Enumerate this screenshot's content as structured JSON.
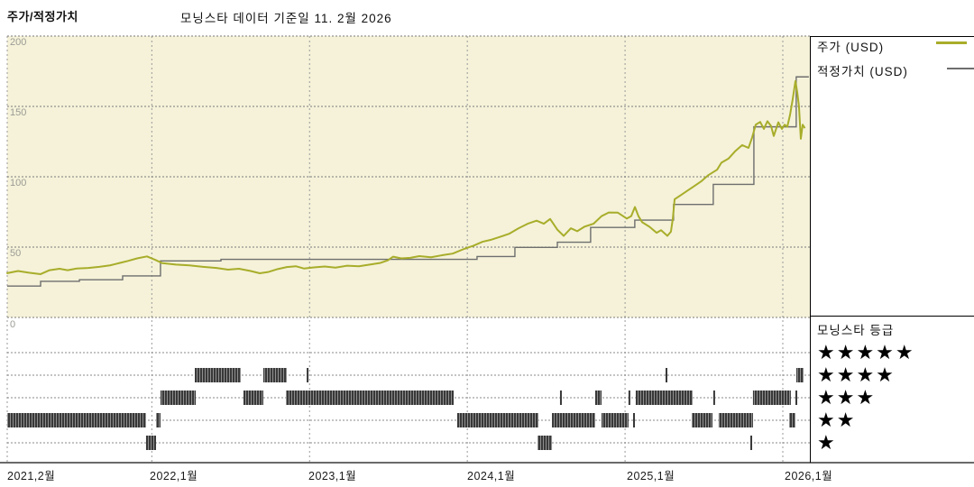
{
  "title": "주가/적정가치",
  "subtitle": "모닝스타 데이터 기준일 11. 2월 2026",
  "legend": {
    "price_label": "주가 (USD)",
    "fair_value_label": "적정가치 (USD)",
    "rating_title": "모닝스타 등급",
    "rating_rows": [
      {
        "stars": "★★★★★",
        "value": 5
      },
      {
        "stars": "★★★★",
        "value": 4
      },
      {
        "stars": "★★★",
        "value": 3
      },
      {
        "stars": "★★",
        "value": 2
      },
      {
        "stars": "★",
        "value": 1
      }
    ]
  },
  "colors": {
    "price": "#a8ad2a",
    "fair_value": "#6e6e6e",
    "plot_bg": "#f5f2d9",
    "grid": "#8a8a8a",
    "barcode_dark": "#383838",
    "barcode_light": "#8f8f8f",
    "axis_label": "#9b9b94"
  },
  "y_axis": {
    "ticks": [
      "200",
      "150",
      "100",
      "50",
      "0"
    ]
  },
  "x_axis": {
    "labels": [
      {
        "text": "2021,2월",
        "month": 0
      },
      {
        "text": "2022,1월",
        "month": 11
      },
      {
        "text": "2023,1월",
        "month": 23
      },
      {
        "text": "2024,1월",
        "month": 35
      },
      {
        "text": "2025,1월",
        "month": 47
      },
      {
        "text": "2026,1월",
        "month": 59
      }
    ]
  },
  "chart_data": {
    "type": "line",
    "title": "주가/적정가치",
    "as_of": "11. 2월 2026",
    "x_unit": "months since 2021-02",
    "xlim": [
      0,
      61.2
    ],
    "ylim": [
      0,
      200
    ],
    "grid": true,
    "legend_position": "right",
    "series": [
      {
        "name": "주가 (USD)",
        "color": "#a8ad2a",
        "step": false,
        "points": [
          [
            0,
            31.5
          ],
          [
            0.82,
            33
          ],
          [
            1.65,
            31.8
          ],
          [
            2.54,
            30.8
          ],
          [
            3.22,
            33.6
          ],
          [
            3.98,
            34.6
          ],
          [
            4.6,
            33.6
          ],
          [
            5.28,
            34.8
          ],
          [
            6.17,
            35.2
          ],
          [
            7,
            36
          ],
          [
            7.82,
            37
          ],
          [
            8.58,
            38.8
          ],
          [
            9.19,
            40.2
          ],
          [
            9.88,
            42
          ],
          [
            10.63,
            43.4
          ],
          [
            11.25,
            41
          ],
          [
            11.8,
            38.6
          ],
          [
            12.83,
            37.6
          ],
          [
            13.86,
            37
          ],
          [
            14.89,
            36
          ],
          [
            15.92,
            35.2
          ],
          [
            16.81,
            34
          ],
          [
            17.63,
            34.6
          ],
          [
            18.52,
            33
          ],
          [
            19.21,
            31.4
          ],
          [
            19.89,
            32.4
          ],
          [
            20.58,
            34.4
          ],
          [
            21.27,
            35.8
          ],
          [
            21.95,
            36.4
          ],
          [
            22.57,
            34.8
          ],
          [
            23.32,
            35.6
          ],
          [
            24.15,
            36.2
          ],
          [
            24.97,
            35.4
          ],
          [
            25.86,
            36.8
          ],
          [
            26.75,
            36.4
          ],
          [
            27.58,
            37.6
          ],
          [
            28.4,
            38.8
          ],
          [
            28.95,
            40.6
          ],
          [
            29.36,
            43.2
          ],
          [
            29.98,
            42
          ],
          [
            30.66,
            42.4
          ],
          [
            31.35,
            43.6
          ],
          [
            32.24,
            42.8
          ],
          [
            33.07,
            44.2
          ],
          [
            33.89,
            45.4
          ],
          [
            34.78,
            48.8
          ],
          [
            35.47,
            51
          ],
          [
            36.16,
            53.8
          ],
          [
            36.84,
            55.3
          ],
          [
            37.53,
            57.4
          ],
          [
            38.21,
            59.6
          ],
          [
            38.9,
            63.4
          ],
          [
            39.59,
            66.6
          ],
          [
            40.27,
            68.8
          ],
          [
            40.82,
            66.6
          ],
          [
            41.3,
            70
          ],
          [
            41.85,
            62.4
          ],
          [
            42.33,
            58
          ],
          [
            42.88,
            63.4
          ],
          [
            43.36,
            61.3
          ],
          [
            43.91,
            64.5
          ],
          [
            44.6,
            66.6
          ],
          [
            45.21,
            72
          ],
          [
            45.76,
            74.6
          ],
          [
            46.45,
            74.5
          ],
          [
            47.13,
            70.3
          ],
          [
            47.47,
            72
          ],
          [
            47.75,
            78.5
          ],
          [
            48.02,
            72
          ],
          [
            48.3,
            67.7
          ],
          [
            48.85,
            64.5
          ],
          [
            49.4,
            60.2
          ],
          [
            49.74,
            62
          ],
          [
            50.22,
            58
          ],
          [
            50.49,
            61
          ],
          [
            50.63,
            70
          ],
          [
            50.77,
            84
          ],
          [
            51.25,
            87
          ],
          [
            51.73,
            90
          ],
          [
            52.28,
            93.5
          ],
          [
            52.83,
            97
          ],
          [
            53.31,
            101
          ],
          [
            54,
            105
          ],
          [
            54.33,
            110
          ],
          [
            54.88,
            113
          ],
          [
            55.36,
            118
          ],
          [
            55.91,
            122.5
          ],
          [
            56.39,
            120.5
          ],
          [
            56.67,
            128
          ],
          [
            56.94,
            137
          ],
          [
            57.28,
            139
          ],
          [
            57.56,
            134
          ],
          [
            57.83,
            139.5
          ],
          [
            58.11,
            136
          ],
          [
            58.31,
            129
          ],
          [
            58.66,
            138.7
          ],
          [
            58.93,
            134
          ],
          [
            59.14,
            137
          ],
          [
            59.34,
            135.5
          ],
          [
            59.55,
            144
          ],
          [
            59.75,
            155
          ],
          [
            59.96,
            168
          ],
          [
            60.1,
            160
          ],
          [
            60.23,
            150
          ],
          [
            60.37,
            127
          ],
          [
            60.51,
            137
          ],
          [
            60.65,
            135
          ]
        ]
      },
      {
        "name": "적정가치 (USD)",
        "color": "#6e6e6e",
        "step": true,
        "end_t": 60.98,
        "points": [
          [
            0,
            22.3
          ],
          [
            2.54,
            25.7
          ],
          [
            5.49,
            26.8
          ],
          [
            8.78,
            29.5
          ],
          [
            11.66,
            40.2
          ],
          [
            16.26,
            41.3
          ],
          [
            35.74,
            43.3
          ],
          [
            38.62,
            49.8
          ],
          [
            41.85,
            53.5
          ],
          [
            44.38,
            64
          ],
          [
            47.74,
            69.2
          ],
          [
            50.69,
            80.3
          ],
          [
            53.71,
            94.6
          ],
          [
            56.8,
            135.5
          ],
          [
            60.02,
            171
          ]
        ]
      }
    ],
    "ratings_timeline": [
      {
        "stars": 5,
        "segments": []
      },
      {
        "stars": 4,
        "segments": [
          [
            14.27,
            17.77
          ],
          [
            19.48,
            21.27
          ],
          [
            22.85,
            22.99
          ],
          [
            50.15,
            50.29
          ],
          [
            60.03,
            60.58
          ]
        ]
      },
      {
        "stars": 3,
        "segments": [
          [
            11.66,
            14.34
          ],
          [
            17.97,
            19.48
          ],
          [
            21.2,
            33.96
          ],
          [
            42.12,
            42.26
          ],
          [
            44.73,
            45.21
          ],
          [
            47.33,
            47.47
          ],
          [
            47.81,
            52.14
          ],
          [
            53.78,
            53.92
          ],
          [
            56.73,
            59.61
          ],
          [
            60.03,
            60.17
          ]
        ]
      },
      {
        "stars": 2,
        "segments": [
          [
            0,
            10.56
          ],
          [
            11.32,
            11.66
          ],
          [
            34.23,
            40.41
          ],
          [
            41.44,
            44.73
          ],
          [
            45.21,
            47.26
          ],
          [
            47.68,
            47.82
          ],
          [
            52.07,
            53.65
          ],
          [
            54.12,
            56.73
          ],
          [
            59.48,
            59.96
          ]
        ]
      },
      {
        "stars": 1,
        "segments": [
          [
            10.56,
            11.32
          ],
          [
            40.34,
            41.44
          ],
          [
            56.6,
            56.74
          ]
        ]
      }
    ]
  }
}
